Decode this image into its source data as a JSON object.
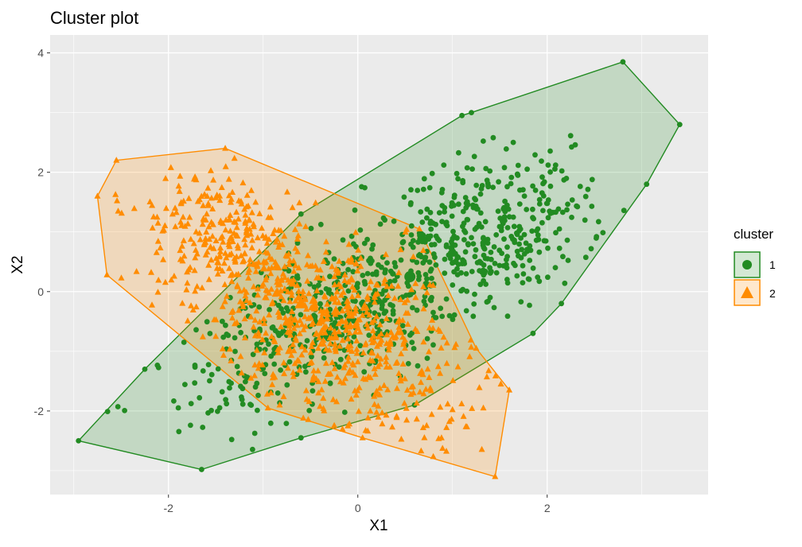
{
  "chart_data": {
    "type": "scatter",
    "title": "Cluster plot",
    "xlabel": "X1",
    "ylabel": "X2",
    "xlim": [
      -3.25,
      3.7
    ],
    "ylim": [
      -3.4,
      4.3
    ],
    "x_ticks": [
      -2,
      0,
      2
    ],
    "x_tick_labels": [
      "-2",
      "0",
      "2"
    ],
    "y_ticks": [
      -2,
      0,
      2,
      4
    ],
    "y_tick_labels": [
      "-2",
      "0",
      "2",
      "4"
    ],
    "grid": true,
    "legend": {
      "title": "cluster",
      "position": "right"
    },
    "series": [
      {
        "name": "1",
        "color": "#228B22",
        "shape": "circle",
        "center": [
          0.55,
          0.25
        ],
        "hull": [
          [
            -2.95,
            -2.5
          ],
          [
            -1.65,
            -2.98
          ],
          [
            -0.6,
            -2.45
          ],
          [
            0.6,
            -1.9
          ],
          [
            1.85,
            -0.7
          ],
          [
            2.15,
            -0.2
          ],
          [
            3.05,
            1.8
          ],
          [
            3.4,
            2.8
          ],
          [
            2.8,
            3.85
          ],
          [
            1.2,
            3.0
          ],
          [
            1.1,
            2.95
          ],
          [
            -0.6,
            1.3
          ],
          [
            -2.25,
            -1.3
          ]
        ],
        "point_count": 850
      },
      {
        "name": "2",
        "color": "#FF8C00",
        "shape": "triangle",
        "center": [
          -0.6,
          -0.2
        ],
        "hull": [
          [
            -2.75,
            1.6
          ],
          [
            -2.55,
            2.2
          ],
          [
            -1.4,
            2.4
          ],
          [
            0.65,
            1.05
          ],
          [
            1.25,
            -0.95
          ],
          [
            1.6,
            -1.65
          ],
          [
            1.45,
            -3.1
          ],
          [
            0.05,
            -2.45
          ],
          [
            -0.95,
            -1.95
          ],
          [
            -2.65,
            0.28
          ]
        ],
        "point_count": 900
      }
    ]
  }
}
